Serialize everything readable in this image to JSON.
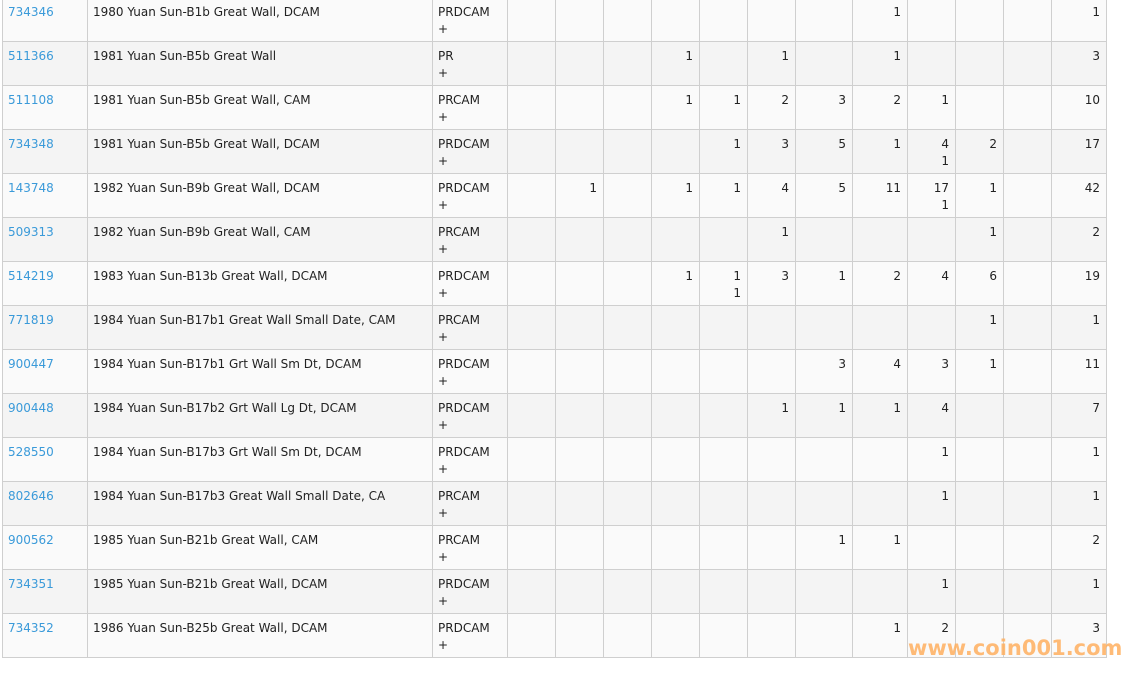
{
  "rows": [
    {
      "id": "734346",
      "desc": "1980 Yuan Sun-B1b Great Wall, DCAM",
      "grade": "PRDCAM",
      "plus": "+",
      "cells": [
        null,
        null,
        null,
        null,
        null,
        null,
        null,
        "1",
        null,
        null,
        null
      ],
      "total": "1"
    },
    {
      "id": "511366",
      "desc": "1981 Yuan Sun-B5b Great Wall",
      "grade": "PR",
      "plus": "+",
      "cells": [
        null,
        null,
        null,
        "1",
        null,
        "1",
        null,
        "1",
        null,
        null,
        null
      ],
      "total": "3"
    },
    {
      "id": "511108",
      "desc": "1981 Yuan Sun-B5b Great Wall, CAM",
      "grade": "PRCAM",
      "plus": "+",
      "cells": [
        null,
        null,
        null,
        "1",
        "1",
        "2",
        "3",
        "2",
        "1",
        null,
        null
      ],
      "total": "10"
    },
    {
      "id": "734348",
      "desc": "1981 Yuan Sun-B5b Great Wall, DCAM",
      "grade": "PRDCAM",
      "plus": "+",
      "cells": [
        null,
        null,
        null,
        null,
        "1",
        "3",
        "5",
        "1",
        [
          "4",
          "1"
        ],
        "2",
        null
      ],
      "total": "17"
    },
    {
      "id": "143748",
      "desc": "1982 Yuan Sun-B9b Great Wall, DCAM",
      "grade": "PRDCAM",
      "plus": "+",
      "cells": [
        null,
        "1",
        null,
        "1",
        "1",
        "4",
        "5",
        "11",
        [
          "17",
          "1"
        ],
        "1",
        null
      ],
      "total": "42"
    },
    {
      "id": "509313",
      "desc": "1982 Yuan Sun-B9b Great Wall, CAM",
      "grade": "PRCAM",
      "plus": "+",
      "cells": [
        null,
        null,
        null,
        null,
        null,
        "1",
        null,
        null,
        null,
        "1",
        null
      ],
      "total": "2"
    },
    {
      "id": "514219",
      "desc": "1983 Yuan Sun-B13b Great Wall, DCAM",
      "grade": "PRDCAM",
      "plus": "+",
      "cells": [
        null,
        null,
        null,
        "1",
        [
          "1",
          "1"
        ],
        "3",
        "1",
        "2",
        "4",
        "6",
        null
      ],
      "total": "19"
    },
    {
      "id": "771819",
      "desc": "1984 Yuan Sun-B17b1 Great Wall Small Date, CAM",
      "grade": "PRCAM",
      "plus": "+",
      "cells": [
        null,
        null,
        null,
        null,
        null,
        null,
        null,
        null,
        null,
        "1",
        null
      ],
      "total": "1"
    },
    {
      "id": "900447",
      "desc": "1984 Yuan Sun-B17b1 Grt Wall Sm Dt, DCAM",
      "grade": "PRDCAM",
      "plus": "+",
      "cells": [
        null,
        null,
        null,
        null,
        null,
        null,
        "3",
        "4",
        "3",
        "1",
        null
      ],
      "total": "11"
    },
    {
      "id": "900448",
      "desc": "1984 Yuan Sun-B17b2 Grt Wall Lg Dt, DCAM",
      "grade": "PRDCAM",
      "plus": "+",
      "cells": [
        null,
        null,
        null,
        null,
        null,
        "1",
        "1",
        "1",
        "4",
        null,
        null
      ],
      "total": "7"
    },
    {
      "id": "528550",
      "desc": "1984 Yuan Sun-B17b3 Grt Wall Sm Dt, DCAM",
      "grade": "PRDCAM",
      "plus": "+",
      "cells": [
        null,
        null,
        null,
        null,
        null,
        null,
        null,
        null,
        "1",
        null,
        null
      ],
      "total": "1"
    },
    {
      "id": "802646",
      "desc": "1984 Yuan Sun-B17b3 Great Wall Small Date, CA",
      "grade": "PRCAM",
      "plus": "+",
      "cells": [
        null,
        null,
        null,
        null,
        null,
        null,
        null,
        null,
        "1",
        null,
        null
      ],
      "total": "1"
    },
    {
      "id": "900562",
      "desc": "1985 Yuan Sun-B21b Great Wall, CAM",
      "grade": "PRCAM",
      "plus": "+",
      "cells": [
        null,
        null,
        null,
        null,
        null,
        null,
        "1",
        "1",
        null,
        null,
        null
      ],
      "total": "2"
    },
    {
      "id": "734351",
      "desc": "1985 Yuan Sun-B21b Great Wall, DCAM",
      "grade": "PRDCAM",
      "plus": "+",
      "cells": [
        null,
        null,
        null,
        null,
        null,
        null,
        null,
        null,
        "1",
        null,
        null
      ],
      "total": "1"
    },
    {
      "id": "734352",
      "desc": "1986 Yuan Sun-B25b Great Wall, DCAM",
      "grade": "PRDCAM",
      "plus": "+",
      "cells": [
        null,
        null,
        null,
        null,
        null,
        null,
        null,
        "1",
        "2",
        null,
        null
      ],
      "total": "3"
    }
  ],
  "watermark": "www.coin001.com",
  "colors": {
    "link": "#3a9ad9",
    "watermark": "#ffb060"
  }
}
